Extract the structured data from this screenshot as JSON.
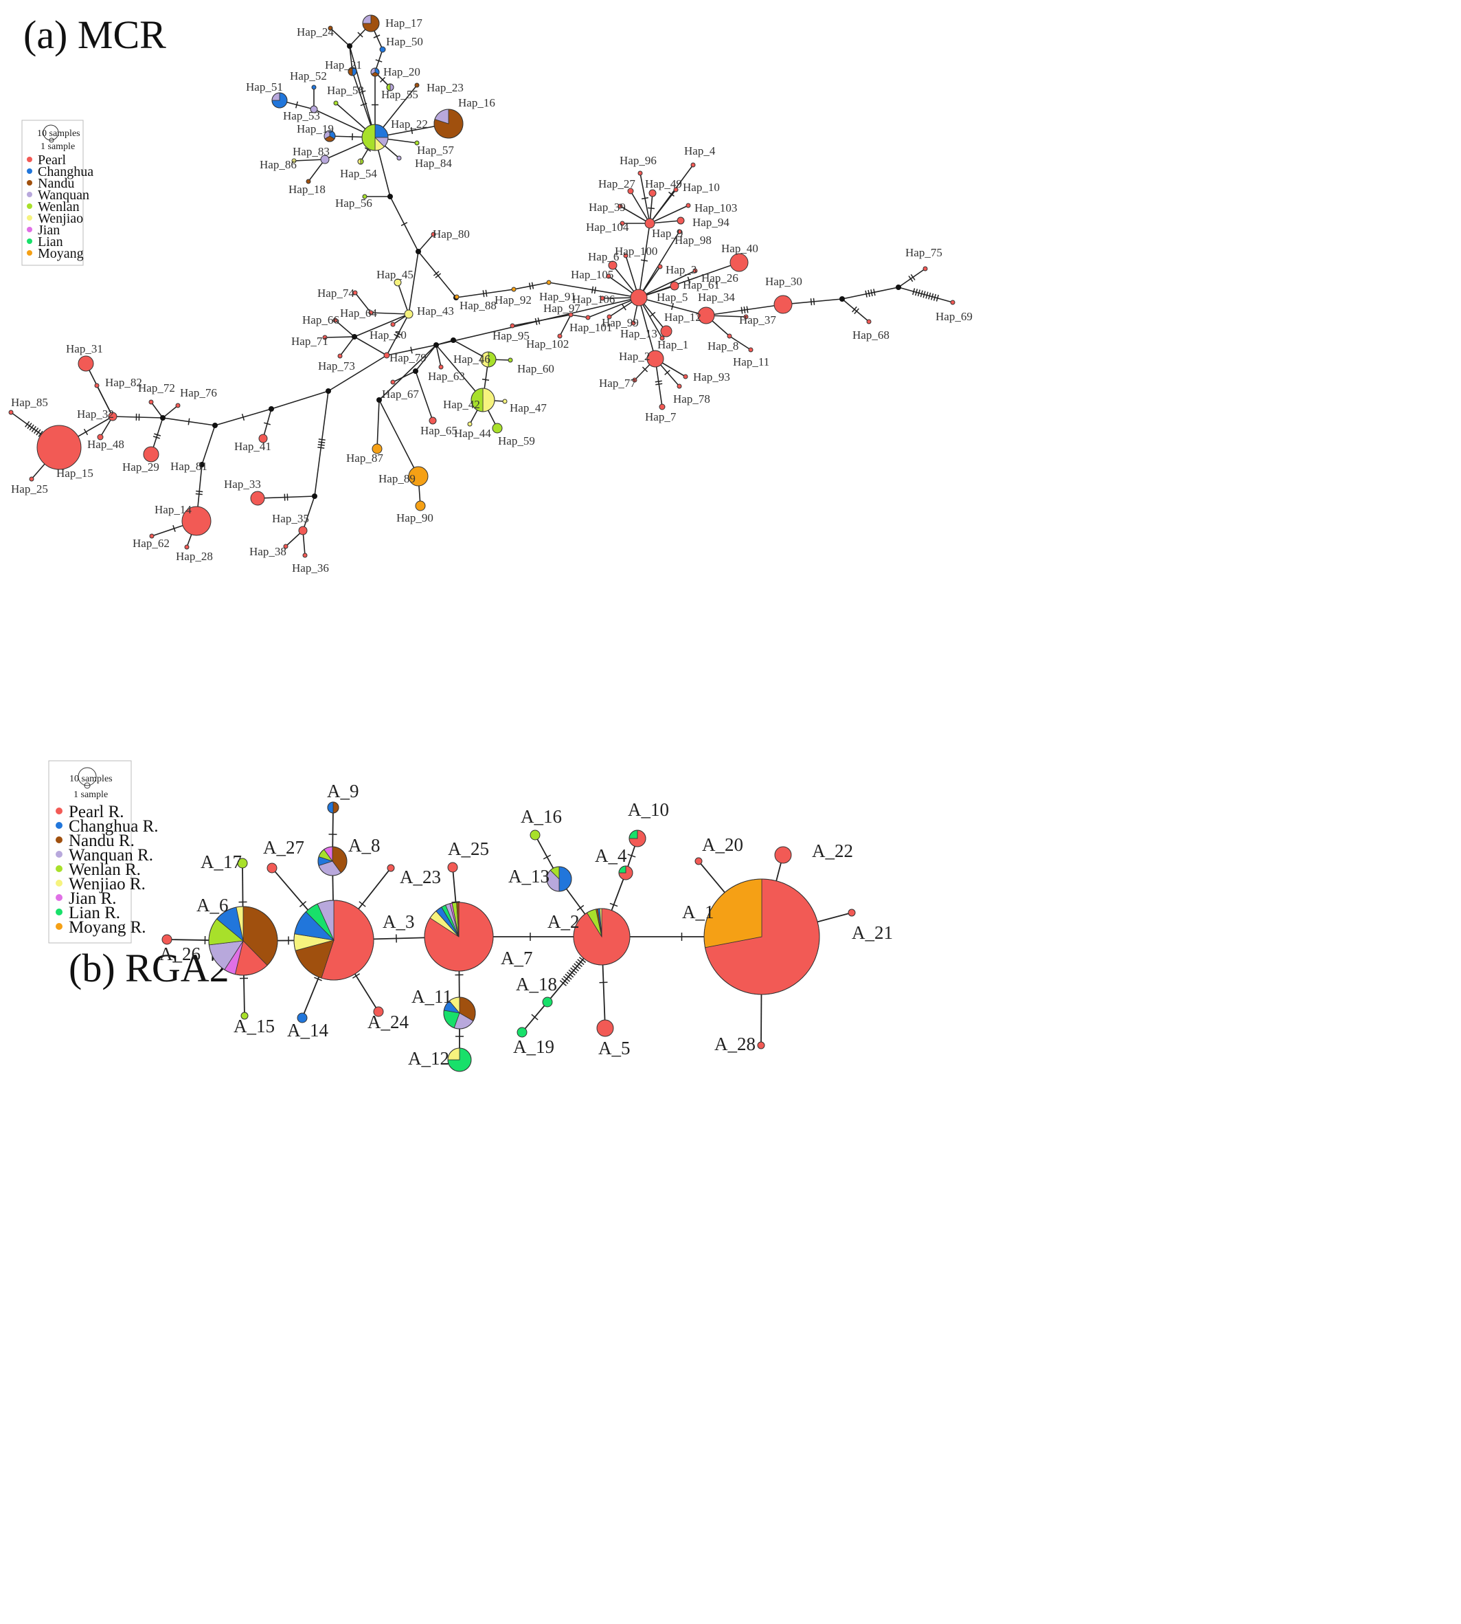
{
  "panels": {
    "a": {
      "title": "(a) MCR",
      "legend": {
        "scale_large": "10 samples",
        "scale_small": "1 sample",
        "items": [
          {
            "label": "Pearl",
            "color": "#f25a55"
          },
          {
            "label": "Changhua",
            "color": "#2176db"
          },
          {
            "label": "Nandu",
            "color": "#a0500e"
          },
          {
            "label": "Wanquan",
            "color": "#b8a8dc"
          },
          {
            "label": "Wenlan",
            "color": "#a8e02a"
          },
          {
            "label": "Wenjiao",
            "color": "#f6f37e"
          },
          {
            "label": "Jian",
            "color": "#e070e6"
          },
          {
            "label": "Lian",
            "color": "#18e06a"
          },
          {
            "label": "Moyang",
            "color": "#f5a015"
          }
        ]
      }
    },
    "b": {
      "title": "(b) RGA2",
      "legend": {
        "scale_large": "10 samples",
        "scale_small": "1 sample",
        "items": [
          {
            "label": "Pearl R.",
            "color": "#f25a55"
          },
          {
            "label": "Changhua R.",
            "color": "#2176db"
          },
          {
            "label": "Nandu R.",
            "color": "#a0500e"
          },
          {
            "label": "Wanquan R.",
            "color": "#b8a8dc"
          },
          {
            "label": "Wenlan  R.",
            "color": "#a8e02a"
          },
          {
            "label": "Wenjiao R.",
            "color": "#f6f37e"
          },
          {
            "label": "Jian  R.",
            "color": "#e070e6"
          },
          {
            "label": "Lian  R.",
            "color": "#18e06a"
          },
          {
            "label": "Moyang  R.",
            "color": "#f5a015"
          }
        ]
      }
    }
  },
  "mcr_labels": [
    "Hap_17",
    "Hap_24",
    "Hap_50",
    "Hap_21",
    "Hap_20",
    "Hap_52",
    "Hap_58",
    "Hap_55",
    "Hap_23",
    "Hap_51",
    "Hap_53",
    "Hap_16",
    "Hap_19",
    "Hap_22",
    "Hap_83",
    "Hap_57",
    "Hap_86",
    "Hap_84",
    "Hap_54",
    "Hap_18",
    "Hap_56",
    "Hap_4",
    "Hap_96",
    "Hap_27",
    "Hap_49",
    "Hap_10",
    "Hap_39",
    "Hap_103",
    "Hap_94",
    "Hap_104",
    "Hap_9",
    "Hap_98",
    "Hap_80",
    "Hap_6",
    "Hap_100",
    "Hap_40",
    "Hap_75",
    "Hap_105",
    "Hap_3",
    "Hap_26",
    "Hap_61",
    "Hap_30",
    "Hap_45",
    "Hap_74",
    "Hap_88",
    "Hap_92",
    "Hap_91",
    "Hap_106",
    "Hap_5",
    "Hap_34",
    "Hap_69",
    "Hap_43",
    "Hap_64",
    "Hap_97",
    "Hap_12",
    "Hap_37",
    "Hap_66",
    "Hap_99",
    "Hap_101",
    "Hap_13",
    "Hap_68",
    "Hap_70",
    "Hap_95",
    "Hap_102",
    "Hap_8",
    "Hap_71",
    "Hap_1",
    "Hap_31",
    "Hap_46",
    "Hap_79",
    "Hap_11",
    "Hap_73",
    "Hap_63",
    "Hap_60",
    "Hap_2",
    "Hap_82",
    "Hap_67",
    "Hap_77",
    "Hap_93",
    "Hap_85",
    "Hap_72",
    "Hap_76",
    "Hap_42",
    "Hap_47",
    "Hap_78",
    "Hap_32",
    "Hap_7",
    "Hap_65",
    "Hap_44",
    "Hap_48",
    "Hap_59",
    "Hap_41",
    "Hap_15",
    "Hap_29",
    "Hap_81",
    "Hap_87",
    "Hap_25",
    "Hap_89",
    "Hap_33",
    "Hap_14",
    "Hap_35",
    "Hap_90",
    "Hap_62",
    "Hap_28",
    "Hap_38",
    "Hap_36"
  ],
  "rga2_labels": [
    "A_9",
    "A_8",
    "A_27",
    "A_16",
    "A_10",
    "A_17",
    "A_25",
    "A_20",
    "A_22",
    "A_23",
    "A_4",
    "A_13",
    "A_6",
    "A_3",
    "A_2",
    "A_1",
    "A_21",
    "A_26",
    "A_7",
    "A_18",
    "A_11",
    "A_24",
    "A_15",
    "A_14",
    "A_5",
    "A_28",
    "A_19",
    "A_12"
  ]
}
